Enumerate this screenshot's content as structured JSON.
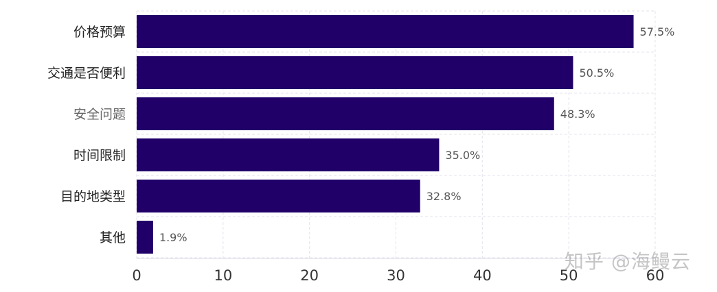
{
  "chart_data": {
    "type": "bar",
    "orientation": "horizontal",
    "categories": [
      "价格预算",
      "交通是否便利",
      "安全问题",
      "时间限制",
      "目的地类型",
      "其他"
    ],
    "values": [
      57.5,
      50.5,
      48.3,
      35.0,
      32.8,
      1.9
    ],
    "value_labels": [
      "57.5%",
      "50.5%",
      "48.3%",
      "35.0%",
      "32.8%",
      "1.9%"
    ],
    "xlim": [
      0,
      60
    ],
    "xticks": [
      0,
      10,
      20,
      30,
      40,
      50,
      60
    ],
    "grid": true,
    "bar_color": "#200068",
    "label_color": "#555555",
    "category_colors": [
      "#222222",
      "#222222",
      "#666666",
      "#222222",
      "#222222",
      "#222222"
    ]
  },
  "watermark": "知乎 @海鳗云"
}
